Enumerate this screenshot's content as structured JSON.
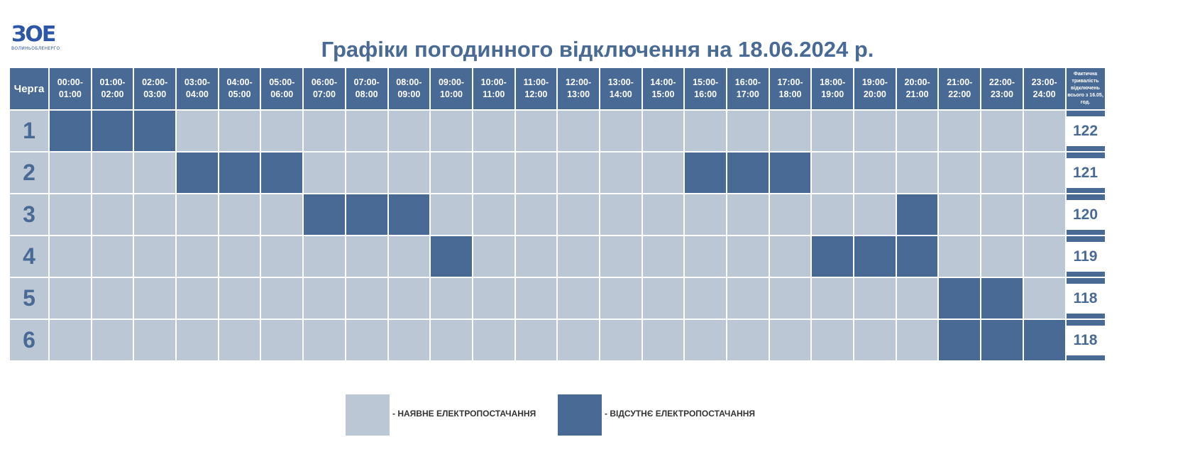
{
  "logo": {
    "mark": "ЗОЕ",
    "sub": "ВОЛИНЬОБЛЕНЕРГО"
  },
  "title": "Графіки погодинного відключення на 18.06.2024 р.",
  "colors": {
    "on": "#bcc7d6",
    "off": "#4a6a96",
    "title": "#4a6a96"
  },
  "chart_data": {
    "type": "table",
    "title": "Графіки погодинного відключення на 18.06.2024 р.",
    "header": {
      "queue": "Черга",
      "slots": [
        [
          "00:00-",
          "01:00"
        ],
        [
          "01:00-",
          "02:00"
        ],
        [
          "02:00-",
          "03:00"
        ],
        [
          "03:00-",
          "04:00"
        ],
        [
          "04:00-",
          "05:00"
        ],
        [
          "05:00-",
          "06:00"
        ],
        [
          "06:00-",
          "07:00"
        ],
        [
          "07:00-",
          "08:00"
        ],
        [
          "08:00-",
          "09:00"
        ],
        [
          "09:00-",
          "10:00"
        ],
        [
          "10:00-",
          "11:00"
        ],
        [
          "11:00-",
          "12:00"
        ],
        [
          "12:00-",
          "13:00"
        ],
        [
          "13:00-",
          "14:00"
        ],
        [
          "14:00-",
          "15:00"
        ],
        [
          "15:00-",
          "16:00"
        ],
        [
          "16:00-",
          "17:00"
        ],
        [
          "17:00-",
          "18:00"
        ],
        [
          "18:00-",
          "19:00"
        ],
        [
          "19:00-",
          "20:00"
        ],
        [
          "20:00-",
          "21:00"
        ],
        [
          "21:00-",
          "22:00"
        ],
        [
          "22:00-",
          "23:00"
        ],
        [
          "23:00-",
          "24:00"
        ]
      ],
      "total_lines": [
        "Фактична",
        "тривалість",
        "відключень",
        "всього з 16.05,",
        "год."
      ]
    },
    "rows": [
      {
        "queue": "1",
        "off_slots": [
          0,
          1,
          2
        ],
        "total": "122"
      },
      {
        "queue": "2",
        "off_slots": [
          3,
          4,
          5,
          15,
          16,
          17
        ],
        "total": "121"
      },
      {
        "queue": "3",
        "off_slots": [
          6,
          7,
          8,
          20
        ],
        "total": "120"
      },
      {
        "queue": "4",
        "off_slots": [
          9,
          18,
          19,
          20
        ],
        "total": "119"
      },
      {
        "queue": "5",
        "off_slots": [
          21,
          22
        ],
        "total": "118"
      },
      {
        "queue": "6",
        "off_slots": [
          21,
          22,
          23
        ],
        "total": "118"
      }
    ],
    "legend": [
      {
        "status": "on",
        "label": "- НАЯВНЕ ЕЛЕКТРОПОСТАЧАННЯ"
      },
      {
        "status": "off",
        "label": "- ВІДСУТНЄ ЕЛЕКТРОПОСТАЧАННЯ"
      }
    ]
  }
}
